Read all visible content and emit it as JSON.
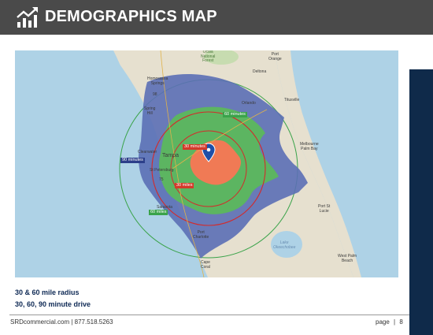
{
  "header": {
    "title": "DEMOGRAPHICS MAP",
    "icon": "trend-chart-icon",
    "background": "#4a4a4a"
  },
  "accent_bar_color": "#0f2a4a",
  "map": {
    "places": {
      "ocala_forest": "Ocala\nNational\nForest",
      "port_orange": "Port\nOrange",
      "deltona": "Deltona",
      "homosassa": "Homosassa\nSprings",
      "spring_hill": "Spring\nHill",
      "orlando": "Orlando",
      "titusville": "Titusville",
      "melbourne": "Melbourne\nPalm Bay",
      "tampa": "Tampa",
      "st_petersburg": "St Petersburg",
      "clearwater": "Clearwater",
      "sarasota": "Sarasota",
      "port_st_lucie": "Port St\nLucie",
      "port_charlotte": "Port\nCharlotte",
      "lake_okeechobee": "Lake\nOkeechobee",
      "cape_coral": "Cape\nCoral",
      "west_palm_beach": "West Palm\nBeach",
      "hwy_75": "75",
      "hwy_98": "98"
    },
    "tags": {
      "drive_60": "60 minutes",
      "drive_30": "30 minutes",
      "drive_90": "90 minutes",
      "radius_30": "30 miles",
      "radius_60": "60 miles"
    },
    "colors": {
      "drive_90": "#5b6fb5",
      "drive_60": "#5cb85c",
      "drive_30": "#f07a55",
      "radius_ring": "#d42a2a",
      "radius_outer": "#3aa34a",
      "water": "#aed2e6",
      "land": "#e6e0cf"
    }
  },
  "captions": {
    "line1": "30 & 60 mile radius",
    "line2": "30, 60, 90 minute drive"
  },
  "footer": {
    "contact": "SRDcommercial.com | 877.518.5263",
    "page_label": "page",
    "separator": "|",
    "page_number": "8"
  }
}
